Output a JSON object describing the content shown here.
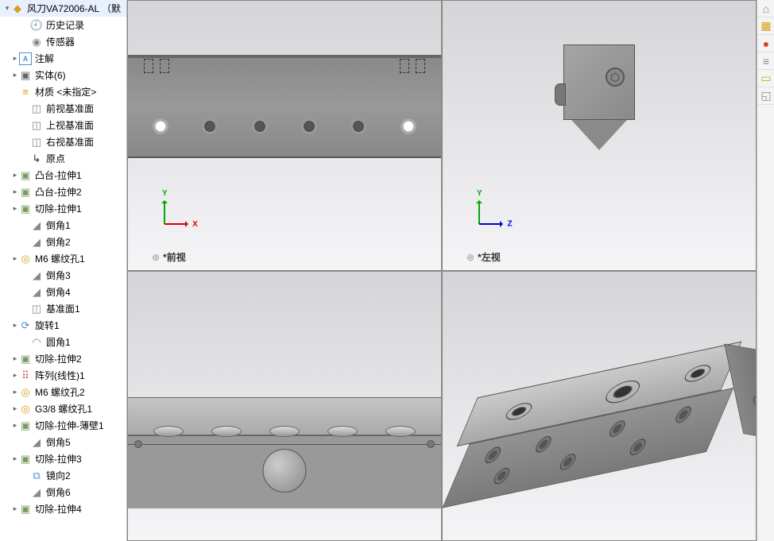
{
  "root_name": "风刀VA72006-AL （默",
  "tree": [
    {
      "indent": 1,
      "exp": "",
      "icon": "folder",
      "label": "历史记录"
    },
    {
      "indent": 1,
      "exp": "",
      "icon": "sensor",
      "label": "传感器"
    },
    {
      "indent": 0,
      "exp": "▸",
      "icon": "ann",
      "label": "注解"
    },
    {
      "indent": 0,
      "exp": "▸",
      "icon": "body",
      "label": "实体(6)"
    },
    {
      "indent": 0,
      "exp": "",
      "icon": "mat",
      "label": "材质 <未指定>"
    },
    {
      "indent": 1,
      "exp": "",
      "icon": "plane",
      "label": "前视基准面"
    },
    {
      "indent": 1,
      "exp": "",
      "icon": "plane",
      "label": "上视基准面"
    },
    {
      "indent": 1,
      "exp": "",
      "icon": "plane",
      "label": "右视基准面"
    },
    {
      "indent": 1,
      "exp": "",
      "icon": "origin",
      "label": "原点"
    },
    {
      "indent": 0,
      "exp": "▸",
      "icon": "feat",
      "label": "凸台-拉伸1"
    },
    {
      "indent": 0,
      "exp": "▸",
      "icon": "feat",
      "label": "凸台-拉伸2"
    },
    {
      "indent": 0,
      "exp": "▸",
      "icon": "feat",
      "label": "切除-拉伸1"
    },
    {
      "indent": 1,
      "exp": "",
      "icon": "chamfer",
      "label": "倒角1"
    },
    {
      "indent": 1,
      "exp": "",
      "icon": "chamfer",
      "label": "倒角2"
    },
    {
      "indent": 0,
      "exp": "▸",
      "icon": "hole",
      "label": "M6 螺纹孔1"
    },
    {
      "indent": 1,
      "exp": "",
      "icon": "chamfer",
      "label": "倒角3"
    },
    {
      "indent": 1,
      "exp": "",
      "icon": "chamfer",
      "label": "倒角4"
    },
    {
      "indent": 1,
      "exp": "",
      "icon": "plane",
      "label": "基准面1"
    },
    {
      "indent": 0,
      "exp": "▸",
      "icon": "rev",
      "label": "旋转1"
    },
    {
      "indent": 1,
      "exp": "",
      "icon": "fillet",
      "label": "圆角1"
    },
    {
      "indent": 0,
      "exp": "▸",
      "icon": "feat",
      "label": "切除-拉伸2"
    },
    {
      "indent": 0,
      "exp": "▸",
      "icon": "pattern",
      "label": "阵列(线性)1"
    },
    {
      "indent": 0,
      "exp": "▸",
      "icon": "hole",
      "label": "M6 螺纹孔2"
    },
    {
      "indent": 0,
      "exp": "▸",
      "icon": "hole",
      "label": "G3/8 螺纹孔1"
    },
    {
      "indent": 0,
      "exp": "▸",
      "icon": "feat",
      "label": "切除-拉伸-薄壁1"
    },
    {
      "indent": 1,
      "exp": "",
      "icon": "chamfer",
      "label": "倒角5"
    },
    {
      "indent": 0,
      "exp": "▸",
      "icon": "feat",
      "label": "切除-拉伸3"
    },
    {
      "indent": 1,
      "exp": "",
      "icon": "mirror",
      "label": "镜向2"
    },
    {
      "indent": 1,
      "exp": "",
      "icon": "chamfer",
      "label": "倒角6"
    },
    {
      "indent": 0,
      "exp": "▸",
      "icon": "feat",
      "label": "切除-拉伸4"
    }
  ],
  "icon_glyphs": {
    "folder": "🕘",
    "sensor": "◉",
    "ann": "A",
    "body": "▣",
    "mat": "≡",
    "plane": "◫",
    "origin": "↳",
    "feat": "▣",
    "chamfer": "◢",
    "hole": "◎",
    "rev": "⟳",
    "fillet": "◠",
    "pattern": "⠿",
    "mirror": "⧉"
  },
  "panes": {
    "front": {
      "label": "*前视",
      "axes": [
        "Y",
        "X"
      ]
    },
    "left": {
      "label": "*左视",
      "axes": [
        "Y",
        "Z"
      ]
    }
  },
  "right_tools": [
    {
      "glyph": "⌂",
      "color": "#888"
    },
    {
      "glyph": "▦",
      "color": "#d4a017"
    },
    {
      "glyph": "●",
      "color": "#d42"
    },
    {
      "glyph": "≡",
      "color": "#888"
    },
    {
      "glyph": "▭",
      "color": "#d4a017"
    },
    {
      "glyph": "◱",
      "color": "#888"
    }
  ],
  "colors": {
    "part_gray": "#909090",
    "part_light": "#b8b8b8",
    "outline": "#555555",
    "bg_gradient_top": "#d5d5d8",
    "bg_gradient_bot": "#f5f5f7"
  }
}
